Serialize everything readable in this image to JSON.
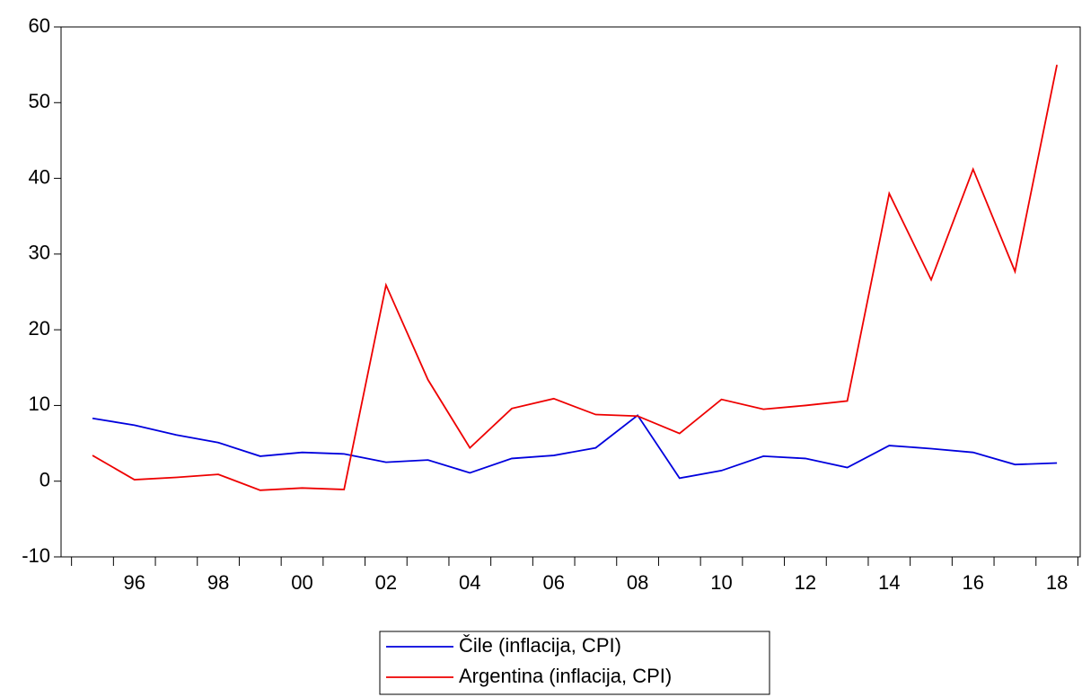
{
  "chart_data": {
    "type": "line",
    "categories": [
      null,
      "96",
      null,
      "98",
      null,
      "00",
      null,
      "02",
      null,
      "04",
      null,
      "06",
      null,
      "08",
      null,
      "10",
      null,
      "12",
      null,
      "14",
      null,
      "16",
      null,
      "18"
    ],
    "series": [
      {
        "name": "Čile (inflacija, CPI)",
        "color": "#0000dd",
        "values": [
          8.3,
          7.4,
          6.1,
          5.1,
          3.3,
          3.8,
          3.6,
          2.5,
          2.8,
          1.1,
          3.0,
          3.4,
          4.4,
          8.7,
          0.4,
          1.4,
          3.3,
          3.0,
          1.8,
          4.7,
          4.3,
          3.8,
          2.2,
          2.4
        ]
      },
      {
        "name": "Argentina (inflacija, CPI)",
        "color": "#ee0000",
        "values": [
          3.4,
          0.2,
          0.5,
          0.9,
          -1.2,
          -0.9,
          -1.1,
          25.9,
          13.4,
          4.4,
          9.6,
          10.9,
          8.8,
          8.6,
          6.3,
          10.8,
          9.5,
          10.0,
          10.6,
          38.0,
          26.6,
          41.2,
          27.7,
          55.0
        ]
      }
    ],
    "ylim": [
      -10,
      60
    ],
    "yticks": [
      -10,
      0,
      10,
      20,
      30,
      40,
      50,
      60
    ],
    "grid": false,
    "legend": "bottom"
  }
}
